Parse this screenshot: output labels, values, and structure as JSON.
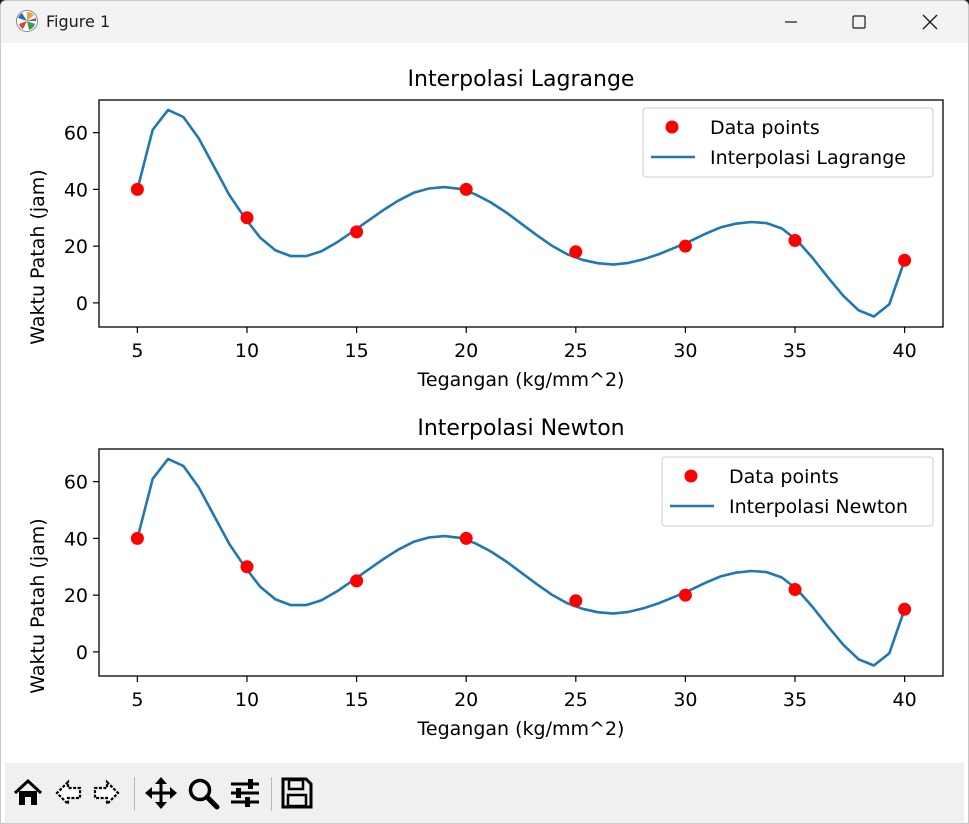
{
  "window": {
    "title": "Figure 1"
  },
  "icons": {
    "app": "matplotlib-icon",
    "minimize": "minimize-icon",
    "maximize": "maximize-icon",
    "close": "close-icon",
    "toolbar": [
      "home-icon",
      "back-icon",
      "forward-icon",
      "pan-icon",
      "zoom-icon",
      "configure-subplots-icon",
      "save-icon"
    ]
  },
  "colors": {
    "data_points": "#ff0000",
    "interpolation_line": "#1f77b4"
  },
  "chart_data": [
    {
      "type": "line",
      "title": "Interpolasi Lagrange",
      "xlabel": "Tegangan (kg/mm^2)",
      "ylabel": "Waktu Patah (jam)",
      "xlim": [
        3.25,
        41.75
      ],
      "ylim": [
        -8.5,
        71.5
      ],
      "xticks": [
        5,
        10,
        15,
        20,
        25,
        30,
        35,
        40
      ],
      "yticks": [
        0,
        20,
        40,
        60
      ],
      "grid": false,
      "legend_position": "upper right",
      "series": [
        {
          "name": "Data points",
          "kind": "scatter",
          "x": [
            5,
            10,
            15,
            20,
            25,
            30,
            35,
            40
          ],
          "y": [
            40,
            30,
            25,
            40,
            18,
            20,
            22,
            15
          ]
        },
        {
          "name": "Interpolasi Lagrange",
          "kind": "line",
          "x": [
            5,
            5.7,
            6.4,
            7.1,
            7.8,
            8.5,
            9.2,
            9.9,
            10.6,
            11.3,
            12.0,
            12.7,
            13.4,
            14.1,
            14.8,
            15.5,
            16.2,
            16.9,
            17.6,
            18.3,
            19.0,
            19.7,
            20.4,
            21.1,
            21.8,
            22.5,
            23.2,
            23.9,
            24.6,
            25.3,
            26.0,
            26.7,
            27.4,
            28.1,
            28.8,
            29.5,
            30.2,
            30.9,
            31.6,
            32.3,
            33.0,
            33.7,
            34.4,
            35.1,
            35.8,
            36.5,
            37.2,
            37.9,
            38.6,
            39.3,
            40.0
          ],
          "y": [
            40,
            61,
            68,
            65.5,
            58,
            48,
            38,
            30,
            23,
            18.5,
            16.5,
            16.5,
            18.2,
            21.3,
            25,
            28.8,
            32.6,
            36,
            38.8,
            40.3,
            40.8,
            40.2,
            38.3,
            35.5,
            32,
            28,
            24,
            20.2,
            17.2,
            15.2,
            14,
            13.5,
            14.1,
            15.4,
            17.2,
            19.4,
            21.7,
            24.3,
            26.6,
            27.9,
            28.5,
            28.1,
            26.2,
            22,
            15.8,
            9,
            2.5,
            -2.6,
            -4.8,
            -0.5,
            15
          ]
        }
      ]
    },
    {
      "type": "line",
      "title": "Interpolasi Newton",
      "xlabel": "Tegangan (kg/mm^2)",
      "ylabel": "Waktu Patah (jam)",
      "xlim": [
        3.25,
        41.75
      ],
      "ylim": [
        -8.5,
        71.5
      ],
      "xticks": [
        5,
        10,
        15,
        20,
        25,
        30,
        35,
        40
      ],
      "yticks": [
        0,
        20,
        40,
        60
      ],
      "grid": false,
      "legend_position": "upper right",
      "series": [
        {
          "name": "Data points",
          "kind": "scatter",
          "x": [
            5,
            10,
            15,
            20,
            25,
            30,
            35,
            40
          ],
          "y": [
            40,
            30,
            25,
            40,
            18,
            20,
            22,
            15
          ]
        },
        {
          "name": "Interpolasi Newton",
          "kind": "line",
          "x": [
            5,
            5.7,
            6.4,
            7.1,
            7.8,
            8.5,
            9.2,
            9.9,
            10.6,
            11.3,
            12.0,
            12.7,
            13.4,
            14.1,
            14.8,
            15.5,
            16.2,
            16.9,
            17.6,
            18.3,
            19.0,
            19.7,
            20.4,
            21.1,
            21.8,
            22.5,
            23.2,
            23.9,
            24.6,
            25.3,
            26.0,
            26.7,
            27.4,
            28.1,
            28.8,
            29.5,
            30.2,
            30.9,
            31.6,
            32.3,
            33.0,
            33.7,
            34.4,
            35.1,
            35.8,
            36.5,
            37.2,
            37.9,
            38.6,
            39.3,
            40.0
          ],
          "y": [
            40,
            61,
            68,
            65.5,
            58,
            48,
            38,
            30,
            23,
            18.5,
            16.5,
            16.5,
            18.2,
            21.3,
            25,
            28.8,
            32.6,
            36,
            38.8,
            40.3,
            40.8,
            40.2,
            38.3,
            35.5,
            32,
            28,
            24,
            20.2,
            17.2,
            15.2,
            14,
            13.5,
            14.1,
            15.4,
            17.2,
            19.4,
            21.7,
            24.3,
            26.6,
            27.9,
            28.5,
            28.1,
            26.2,
            22,
            15.8,
            9,
            2.5,
            -2.6,
            -4.8,
            -0.5,
            15
          ]
        }
      ]
    }
  ]
}
